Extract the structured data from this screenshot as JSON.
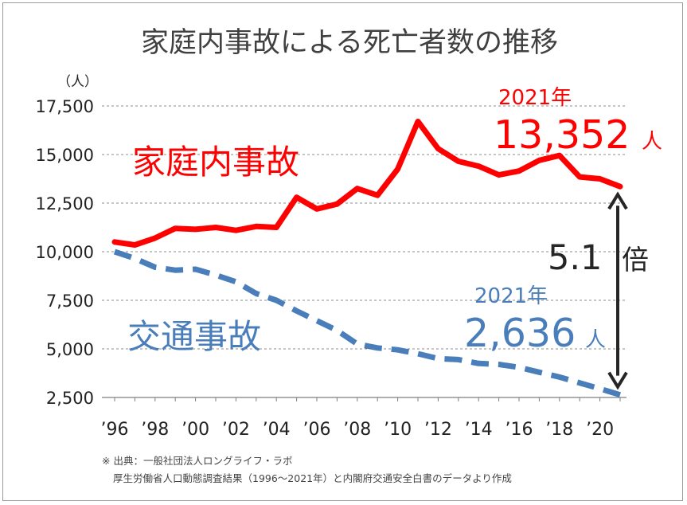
{
  "chart_data": {
    "type": "line",
    "title": "家庭内事故による死亡者数の推移",
    "ylabel": "（人）",
    "ylim": [
      2500,
      17500
    ],
    "yticks": [
      "17,500",
      "15,000",
      "12,500",
      "10,000",
      "7,500",
      "5,000",
      "2,500"
    ],
    "ytick_values": [
      17500,
      15000,
      12500,
      10000,
      7500,
      5000,
      2500
    ],
    "xticks": [
      "’96",
      "’98",
      "’00",
      "’02",
      "’04",
      "’06",
      "’08",
      "’10",
      "’12",
      "’14",
      "’16",
      "’18",
      "’20"
    ],
    "xtick_years": [
      1996,
      1998,
      2000,
      2002,
      2004,
      2006,
      2008,
      2010,
      2012,
      2014,
      2016,
      2018,
      2020
    ],
    "x": [
      1996,
      1997,
      1998,
      1999,
      2000,
      2001,
      2002,
      2003,
      2004,
      2005,
      2006,
      2007,
      2008,
      2009,
      2010,
      2011,
      2012,
      2013,
      2014,
      2015,
      2016,
      2017,
      2018,
      2019,
      2020,
      2021
    ],
    "grid": "horizontal dashed",
    "series": [
      {
        "name": "家庭内事故",
        "color": "#ff0000",
        "style": "solid",
        "values": [
          10500,
          10350,
          10700,
          11200,
          11150,
          11250,
          11100,
          11300,
          11250,
          12800,
          12200,
          12450,
          13250,
          12900,
          14250,
          16700,
          15300,
          14650,
          14400,
          13950,
          14150,
          14700,
          14950,
          13850,
          13750,
          13352
        ]
      },
      {
        "name": "交通事故",
        "color": "#4a7ebb",
        "style": "dashed",
        "values": [
          10000,
          9650,
          9200,
          9050,
          9100,
          8800,
          8450,
          7850,
          7500,
          6950,
          6450,
          5950,
          5250,
          5050,
          4950,
          4750,
          4500,
          4450,
          4250,
          4200,
          4050,
          3800,
          3550,
          3250,
          2950,
          2636
        ]
      }
    ],
    "annotations": {
      "home_year": "2021年",
      "home_value": "13,352",
      "home_unit": "人",
      "traffic_year": "2021年",
      "traffic_value": "2,636",
      "traffic_unit": "人",
      "ratio_value": "5.1",
      "ratio_unit": "倍"
    }
  },
  "source": {
    "line1": "※ 出典：一般社団法人ロングライフ・ラボ",
    "line2": "厚生労働省人口動態調査結果（1996〜2021年）と内閣府交通安全白書のデータより作成"
  }
}
